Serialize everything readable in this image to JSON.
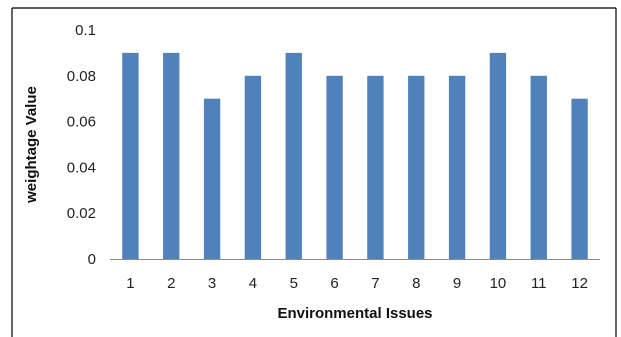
{
  "chart_data": {
    "type": "bar",
    "categories": [
      "1",
      "2",
      "3",
      "4",
      "5",
      "6",
      "7",
      "8",
      "9",
      "10",
      "11",
      "12"
    ],
    "values": [
      0.09,
      0.09,
      0.07,
      0.08,
      0.09,
      0.08,
      0.08,
      0.08,
      0.08,
      0.09,
      0.08,
      0.07
    ],
    "xlabel": "Environmental Issues",
    "ylabel": "weightage Value",
    "ylim": [
      0,
      0.1
    ],
    "yticks": [
      "0",
      "0.02",
      "0.04",
      "0.06",
      "0.08",
      "0.1"
    ],
    "grid": false,
    "legend": "none",
    "colors": {
      "bar": "#4f81bd",
      "axis": "#8c8c8c",
      "frame": "#000000"
    }
  }
}
